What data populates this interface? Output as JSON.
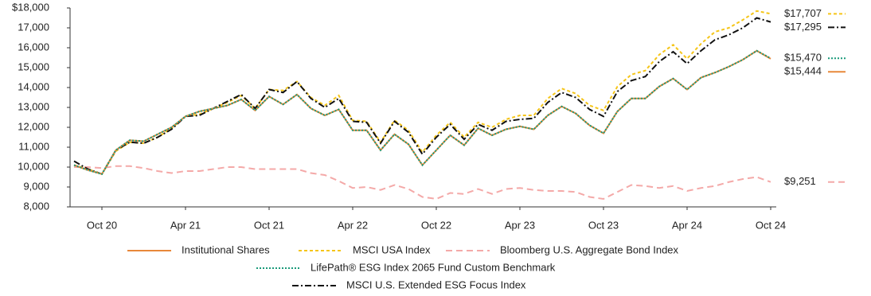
{
  "chart_data": {
    "type": "line",
    "categories": [
      null,
      null,
      "Oct 20",
      null,
      null,
      null,
      null,
      null,
      "Apr 21",
      null,
      null,
      null,
      null,
      null,
      "Oct 21",
      null,
      null,
      null,
      null,
      null,
      "Apr 22",
      null,
      null,
      null,
      null,
      null,
      "Oct 22",
      null,
      null,
      null,
      null,
      null,
      "Apr 23",
      null,
      null,
      null,
      null,
      null,
      "Oct 23",
      null,
      null,
      null,
      null,
      null,
      "Apr 24",
      null,
      null,
      null,
      null,
      null,
      "Oct 24"
    ],
    "ylim": [
      8000,
      18000
    ],
    "yticks": [
      {
        "value": 8000,
        "label": "8,000"
      },
      {
        "value": 9000,
        "label": "9,000"
      },
      {
        "value": 10000,
        "label": "10,000"
      },
      {
        "value": 11000,
        "label": "11,000"
      },
      {
        "value": 12000,
        "label": "12,000"
      },
      {
        "value": 13000,
        "label": "13,000"
      },
      {
        "value": 14000,
        "label": "14,000"
      },
      {
        "value": 15000,
        "label": "15,000"
      },
      {
        "value": 16000,
        "label": "16,000"
      },
      {
        "value": 17000,
        "label": "17,000"
      },
      {
        "value": 18000,
        "label": "$18,000"
      }
    ],
    "grid": false,
    "series": [
      {
        "name": "Institutional Shares",
        "color": "#e8883a",
        "values": [
          10100,
          9850,
          9650,
          10850,
          11350,
          11300,
          11650,
          12000,
          12550,
          12800,
          12950,
          13100,
          13400,
          12850,
          13550,
          13150,
          13650,
          12950,
          12600,
          12900,
          11850,
          11850,
          10850,
          11650,
          11150,
          10100,
          10850,
          11600,
          11100,
          11950,
          11600,
          11900,
          12050,
          11900,
          12600,
          13050,
          12700,
          12100,
          11700,
          12800,
          13450,
          13450,
          14050,
          14450,
          13900,
          14500,
          14750,
          15050,
          15400,
          15850,
          15444
        ],
        "value_labels": [
          null,
          null,
          null,
          null,
          null,
          null,
          null,
          null,
          null,
          null,
          null,
          null,
          null,
          null,
          null,
          null,
          null,
          null,
          null,
          null,
          null,
          null,
          null,
          null,
          null,
          null,
          null,
          null,
          null,
          null,
          null,
          null,
          null,
          null,
          null,
          null,
          null,
          null,
          null,
          null,
          null,
          null,
          null,
          null,
          null,
          null,
          null,
          null,
          null,
          null,
          "$15,444"
        ]
      },
      {
        "name": "MSCI USA Index",
        "color": "#f5c518",
        "values": [
          10100,
          9900,
          9650,
          10800,
          11250,
          11200,
          11500,
          11950,
          12550,
          12650,
          12950,
          13250,
          13600,
          12950,
          13900,
          13850,
          14300,
          13500,
          13100,
          13600,
          12350,
          12300,
          11250,
          12350,
          11850,
          10750,
          11600,
          12250,
          11500,
          12250,
          12000,
          12400,
          12600,
          12600,
          13450,
          13950,
          13700,
          13100,
          12850,
          14050,
          14650,
          14850,
          15650,
          16150,
          15450,
          16200,
          16800,
          17000,
          17400,
          17850,
          17707
        ],
        "value_labels": [
          null,
          null,
          null,
          null,
          null,
          null,
          null,
          null,
          null,
          null,
          null,
          null,
          null,
          null,
          null,
          null,
          null,
          null,
          null,
          null,
          null,
          null,
          null,
          null,
          null,
          null,
          null,
          null,
          null,
          null,
          null,
          null,
          null,
          null,
          null,
          null,
          null,
          null,
          null,
          null,
          null,
          null,
          null,
          null,
          null,
          null,
          null,
          null,
          null,
          null,
          "$17,707"
        ]
      },
      {
        "name": "Bloomberg U.S. Aggregate Bond Index",
        "color": "#f4a9a8",
        "values": [
          10000,
          10000,
          9950,
          10050,
          10050,
          9950,
          9800,
          9700,
          9800,
          9800,
          9900,
          10000,
          10000,
          9900,
          9900,
          9900,
          9900,
          9700,
          9600,
          9300,
          8950,
          9000,
          8850,
          9100,
          8900,
          8500,
          8400,
          8700,
          8650,
          8900,
          8650,
          8900,
          8950,
          8850,
          8800,
          8800,
          8750,
          8500,
          8400,
          8750,
          9100,
          9050,
          8950,
          9050,
          8800,
          8950,
          9050,
          9250,
          9400,
          9500,
          9251
        ],
        "value_labels": [
          null,
          null,
          null,
          null,
          null,
          null,
          null,
          null,
          null,
          null,
          null,
          null,
          null,
          null,
          null,
          null,
          null,
          null,
          null,
          null,
          null,
          null,
          null,
          null,
          null,
          null,
          null,
          null,
          null,
          null,
          null,
          null,
          null,
          null,
          null,
          null,
          null,
          null,
          null,
          null,
          null,
          null,
          null,
          null,
          null,
          null,
          null,
          null,
          null,
          null,
          "$9,251"
        ]
      },
      {
        "name": "LifePath® ESG Index 2065 Fund Custom Benchmark",
        "color": "#1a9a7a",
        "values": [
          10100,
          9850,
          9650,
          10850,
          11350,
          11300,
          11650,
          12000,
          12550,
          12800,
          12950,
          13100,
          13400,
          12850,
          13550,
          13150,
          13650,
          12950,
          12600,
          12900,
          11850,
          11850,
          10850,
          11650,
          11150,
          10100,
          10850,
          11600,
          11100,
          11950,
          11600,
          11900,
          12050,
          11900,
          12600,
          13050,
          12700,
          12100,
          11700,
          12800,
          13450,
          13450,
          14050,
          14450,
          13900,
          14500,
          14750,
          15050,
          15400,
          15850,
          15470
        ],
        "value_labels": [
          null,
          null,
          null,
          null,
          null,
          null,
          null,
          null,
          null,
          null,
          null,
          null,
          null,
          null,
          null,
          null,
          null,
          null,
          null,
          null,
          null,
          null,
          null,
          null,
          null,
          null,
          null,
          null,
          null,
          null,
          null,
          null,
          null,
          null,
          null,
          null,
          null,
          null,
          null,
          null,
          null,
          null,
          null,
          null,
          null,
          null,
          null,
          null,
          null,
          null,
          "$15,470"
        ]
      },
      {
        "name": "MSCI U.S. Extended ESG Focus Index",
        "color": "#111111",
        "values": [
          10300,
          9900,
          9650,
          10850,
          11250,
          11200,
          11500,
          11900,
          12550,
          12600,
          12950,
          13300,
          13650,
          12950,
          13900,
          13750,
          14300,
          13450,
          13000,
          13450,
          12300,
          12250,
          11200,
          12300,
          11750,
          10650,
          11500,
          12150,
          11400,
          12150,
          11850,
          12300,
          12400,
          12450,
          13250,
          13750,
          13500,
          12900,
          12550,
          13800,
          14350,
          14550,
          15300,
          15800,
          15200,
          15850,
          16400,
          16650,
          17000,
          17500,
          17295
        ],
        "value_labels": [
          null,
          null,
          null,
          null,
          null,
          null,
          null,
          null,
          null,
          null,
          null,
          null,
          null,
          null,
          null,
          null,
          null,
          null,
          null,
          null,
          null,
          null,
          null,
          null,
          null,
          null,
          null,
          null,
          null,
          null,
          null,
          null,
          null,
          null,
          null,
          null,
          null,
          null,
          null,
          null,
          null,
          null,
          null,
          null,
          null,
          null,
          null,
          null,
          null,
          null,
          "$17,295"
        ]
      }
    ]
  }
}
